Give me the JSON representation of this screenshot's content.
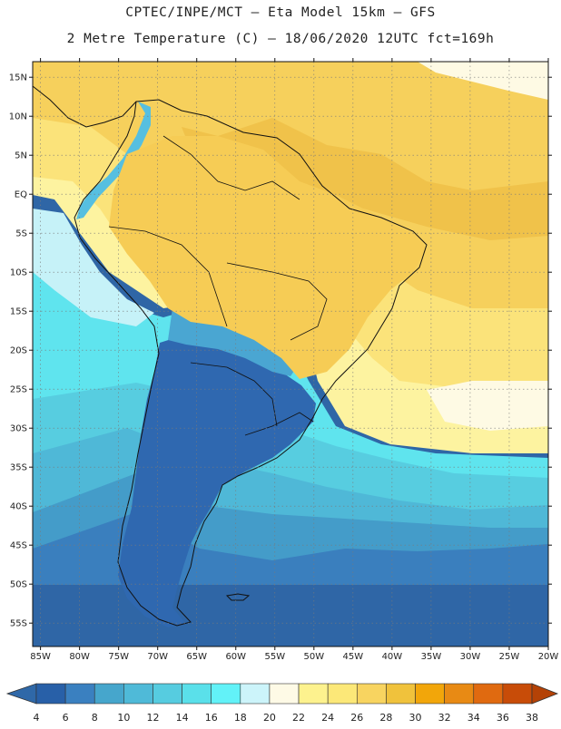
{
  "header": {
    "line1": "CPTEC/INPE/MCT  –  Eta Model 15km  –  GFS",
    "line2": "2 Metre Temperature (C) – 18/06/2020 12UTC fct=169h"
  },
  "map": {
    "lon_range": [
      -86,
      -20
    ],
    "lat_range": [
      -58,
      17
    ],
    "lat_ticks": [
      {
        "value": 15,
        "label": "15N"
      },
      {
        "value": 10,
        "label": "10N"
      },
      {
        "value": 5,
        "label": "5N"
      },
      {
        "value": 0,
        "label": "EQ"
      },
      {
        "value": -5,
        "label": "5S"
      },
      {
        "value": -10,
        "label": "10S"
      },
      {
        "value": -15,
        "label": "15S"
      },
      {
        "value": -20,
        "label": "20S"
      },
      {
        "value": -25,
        "label": "25S"
      },
      {
        "value": -30,
        "label": "30S"
      },
      {
        "value": -35,
        "label": "35S"
      },
      {
        "value": -40,
        "label": "40S"
      },
      {
        "value": -45,
        "label": "45S"
      },
      {
        "value": -50,
        "label": "50S"
      },
      {
        "value": -55,
        "label": "55S"
      }
    ],
    "lon_ticks": [
      {
        "value": -85,
        "label": "85W"
      },
      {
        "value": -80,
        "label": "80W"
      },
      {
        "value": -75,
        "label": "75W"
      },
      {
        "value": -70,
        "label": "70W"
      },
      {
        "value": -65,
        "label": "65W"
      },
      {
        "value": -60,
        "label": "60W"
      },
      {
        "value": -55,
        "label": "55W"
      },
      {
        "value": -50,
        "label": "50W"
      },
      {
        "value": -45,
        "label": "45W"
      },
      {
        "value": -40,
        "label": "40W"
      },
      {
        "value": -35,
        "label": "35W"
      },
      {
        "value": -30,
        "label": "30W"
      },
      {
        "value": -25,
        "label": "25W"
      },
      {
        "value": -20,
        "label": "20W"
      }
    ],
    "grid": true
  },
  "colorbar": {
    "labels": [
      "4",
      "6",
      "8",
      "10",
      "12",
      "14",
      "16",
      "18",
      "20",
      "22",
      "24",
      "26",
      "28",
      "30",
      "32",
      "34",
      "36",
      "38"
    ],
    "colors": [
      "#2860a8",
      "#3a80c0",
      "#46a6cc",
      "#4fbad8",
      "#56cce0",
      "#5ae0ea",
      "#62f2f8",
      "#ccf4fa",
      "#fefae6",
      "#fdf28e",
      "#fce878",
      "#f8d460",
      "#f0c23c",
      "#f2a60a",
      "#e88a14",
      "#e06a10",
      "#c84c08"
    ],
    "low_color": "#2f68a8",
    "high_color": "#b44206"
  }
}
